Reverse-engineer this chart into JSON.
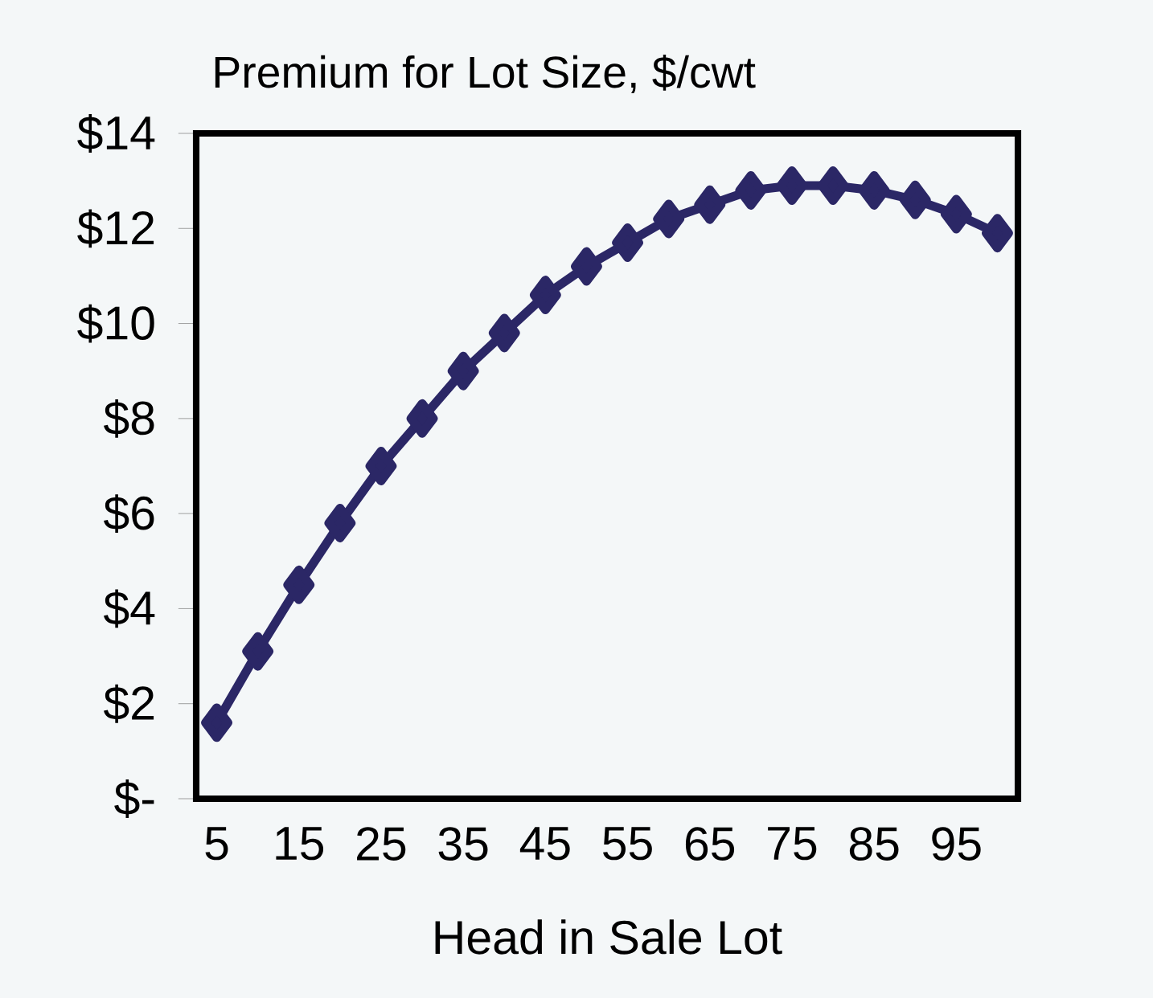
{
  "chart_data": {
    "type": "line",
    "title": "Premium for Lot Size, $/cwt",
    "xlabel": "Head in Sale Lot",
    "categories": [
      "5",
      null,
      "15",
      null,
      "25",
      null,
      "35",
      null,
      "45",
      null,
      "55",
      null,
      "65",
      null,
      "75",
      null,
      "85",
      null,
      "95",
      null
    ],
    "series": [
      {
        "color": "#2b2766",
        "values": [
          1.6,
          3.1,
          4.5,
          5.8,
          7.0,
          8.0,
          9.0,
          9.8,
          10.6,
          11.2,
          11.7,
          12.2,
          12.5,
          12.8,
          12.9,
          12.9,
          12.8,
          12.6,
          12.3,
          11.9
        ]
      }
    ],
    "ylim": [
      0,
      14
    ],
    "yticks": [
      {
        "value": 0,
        "label": "$-"
      },
      {
        "value": 2,
        "label": "$2"
      },
      {
        "value": 4,
        "label": "$4"
      },
      {
        "value": 6,
        "label": "$6"
      },
      {
        "value": 8,
        "label": "$8"
      },
      {
        "value": 10,
        "label": "$10"
      },
      {
        "value": 12,
        "label": "$12"
      },
      {
        "value": 14,
        "label": "$14"
      }
    ],
    "marker": "diamond",
    "line_style": "solid",
    "grid": false
  }
}
